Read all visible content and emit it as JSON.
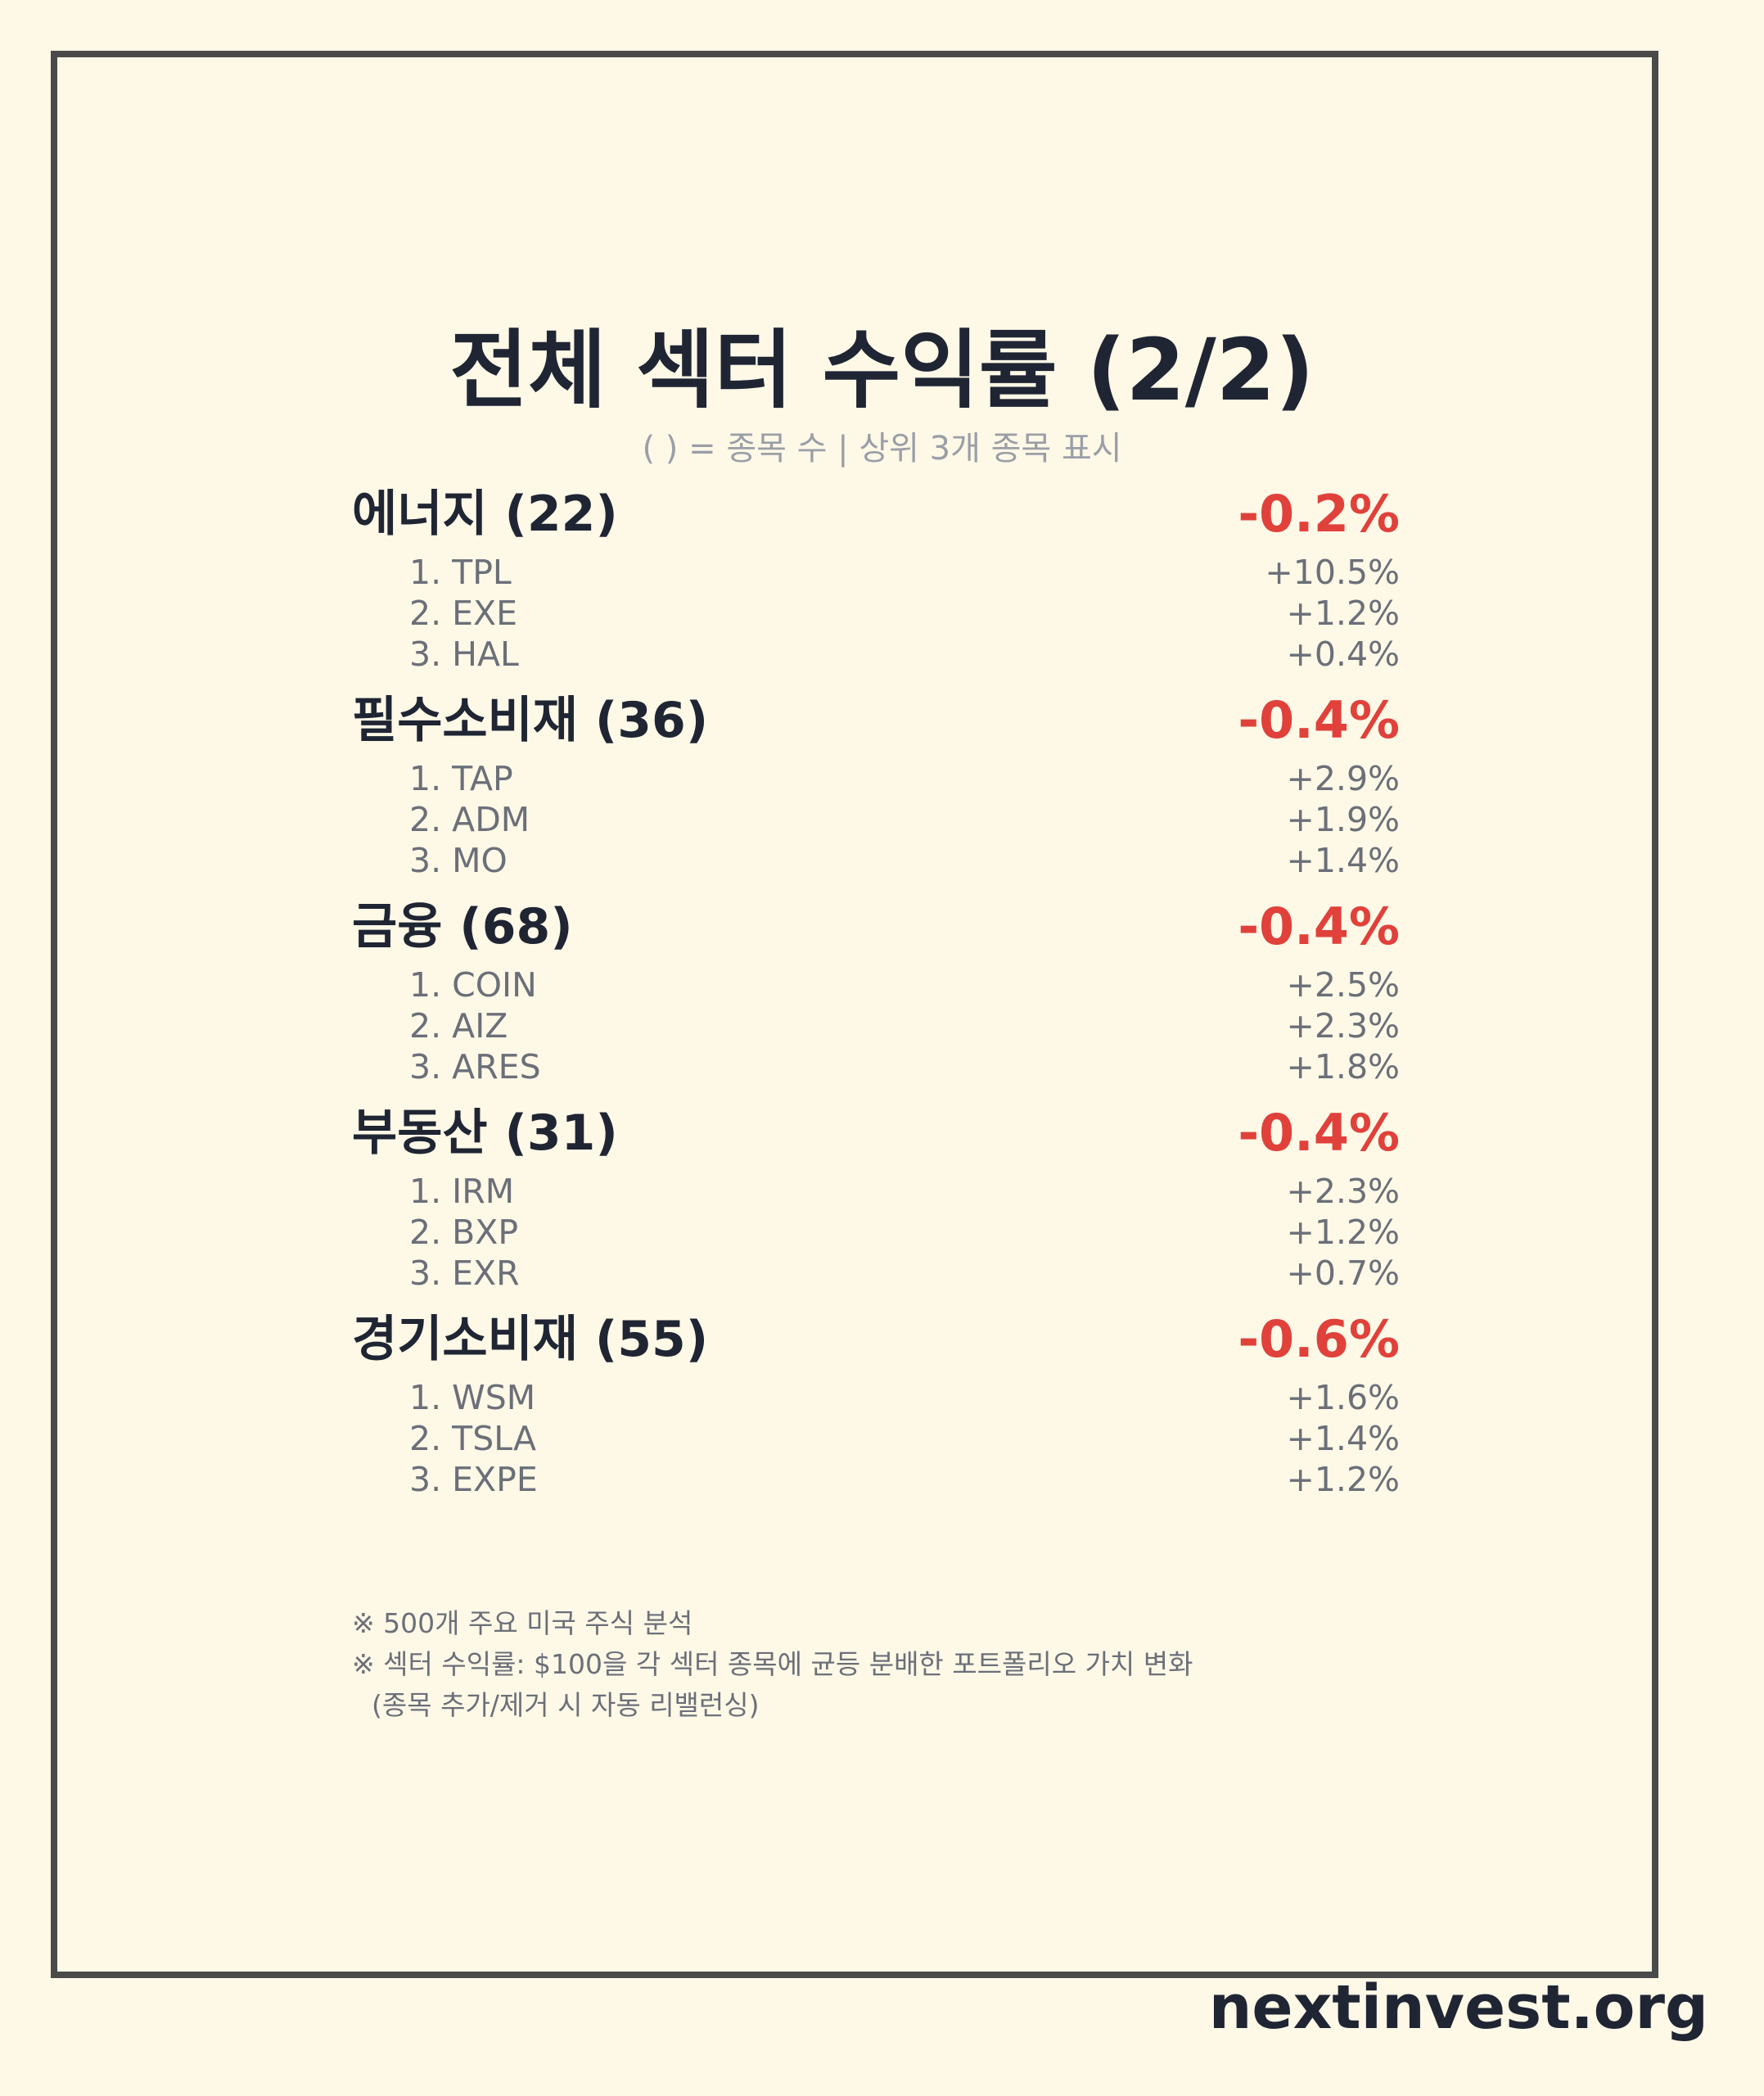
{
  "title": "전체 섹터 수익률 (2/2)",
  "subtitle": "( ) = 종목 수 | 상위 3개 종목 표시",
  "colors": {
    "negative": "#e0413b",
    "positive": "#22a35a",
    "text": "#1f2533",
    "muted": "#6b6f78",
    "background": "#fef8e7",
    "frame": "#4a4a4a"
  },
  "sectors": [
    {
      "name": "에너지 (22)",
      "return": "-0.2%",
      "direction": "negative",
      "stocks": [
        {
          "label": "1. TPL",
          "return": "+10.5%"
        },
        {
          "label": "2. EXE",
          "return": "+1.2%"
        },
        {
          "label": "3. HAL",
          "return": "+0.4%"
        }
      ]
    },
    {
      "name": "필수소비재 (36)",
      "return": "-0.4%",
      "direction": "negative",
      "stocks": [
        {
          "label": "1. TAP",
          "return": "+2.9%"
        },
        {
          "label": "2. ADM",
          "return": "+1.9%"
        },
        {
          "label": "3. MO",
          "return": "+1.4%"
        }
      ]
    },
    {
      "name": "금융 (68)",
      "return": "-0.4%",
      "direction": "negative",
      "stocks": [
        {
          "label": "1. COIN",
          "return": "+2.5%"
        },
        {
          "label": "2. AIZ",
          "return": "+2.3%"
        },
        {
          "label": "3. ARES",
          "return": "+1.8%"
        }
      ]
    },
    {
      "name": "부동산 (31)",
      "return": "-0.4%",
      "direction": "negative",
      "stocks": [
        {
          "label": "1. IRM",
          "return": "+2.3%"
        },
        {
          "label": "2. BXP",
          "return": "+1.2%"
        },
        {
          "label": "3. EXR",
          "return": "+0.7%"
        }
      ]
    },
    {
      "name": "경기소비재 (55)",
      "return": "-0.6%",
      "direction": "negative",
      "stocks": [
        {
          "label": "1. WSM",
          "return": "+1.6%"
        },
        {
          "label": "2. TSLA",
          "return": "+1.4%"
        },
        {
          "label": "3. EXPE",
          "return": "+1.2%"
        }
      ]
    }
  ],
  "notes": [
    "※ 500개 주요 미국 주식 분석",
    "※ 섹터 수익률: $100을 각 섹터 종목에 균등 분배한 포트폴리오 가치 변화",
    "(종목 추가/제거 시 자동 리밸런싱)"
  ],
  "brand": "nextinvest.org"
}
